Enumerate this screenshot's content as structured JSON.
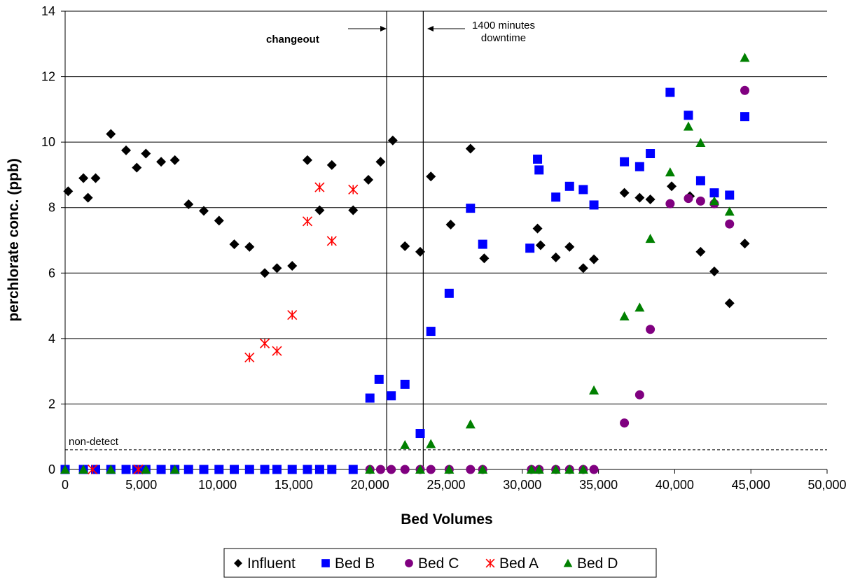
{
  "chart_data": {
    "type": "scatter",
    "title": "",
    "xlabel": "Bed Volumes",
    "ylabel": "perchlorate conc. (ppb)",
    "xlim": [
      0,
      50000
    ],
    "ylim": [
      0,
      14
    ],
    "xticks": [
      0,
      5000,
      10000,
      15000,
      20000,
      25000,
      30000,
      35000,
      40000,
      45000,
      50000
    ],
    "xtick_labels": [
      "0",
      "5,000",
      "10,000",
      "15,000",
      "20,000",
      "25,000",
      "30,000",
      "35,000",
      "40,000",
      "45,000",
      "50,000"
    ],
    "yticks": [
      0,
      2,
      4,
      6,
      8,
      10,
      12,
      14
    ],
    "ytick_labels": [
      "0",
      "2",
      "4",
      "6",
      "8",
      "10",
      "12",
      "14"
    ],
    "grid": "horizontal",
    "legend_position": "bottom",
    "reference_lines": [
      {
        "orientation": "horizontal",
        "value": 0.6,
        "style": "dashed",
        "label": "non-detect"
      },
      {
        "orientation": "vertical",
        "value": 21100,
        "style": "solid",
        "label": "changeout"
      },
      {
        "orientation": "vertical",
        "value": 23500,
        "style": "solid",
        "label": "1400 minutes downtime"
      }
    ],
    "annotations": {
      "nondetect": "non-detect",
      "changeout": "changeout",
      "downtime_line1": "1400 minutes",
      "downtime_line2": "downtime"
    },
    "series": [
      {
        "name": "Influent",
        "marker": "diamond",
        "color": "#000000",
        "points": [
          [
            200,
            8.5
          ],
          [
            1200,
            8.9
          ],
          [
            1500,
            8.3
          ],
          [
            2000,
            8.9
          ],
          [
            3000,
            10.25
          ],
          [
            4000,
            9.75
          ],
          [
            4700,
            9.22
          ],
          [
            5300,
            9.65
          ],
          [
            6300,
            9.4
          ],
          [
            7200,
            9.45
          ],
          [
            8100,
            8.1
          ],
          [
            9100,
            7.9
          ],
          [
            10100,
            7.6
          ],
          [
            11100,
            6.88
          ],
          [
            12100,
            6.8
          ],
          [
            13100,
            6.0
          ],
          [
            13900,
            6.15
          ],
          [
            14900,
            6.22
          ],
          [
            15900,
            9.45
          ],
          [
            16700,
            7.92
          ],
          [
            17500,
            9.3
          ],
          [
            18900,
            7.92
          ],
          [
            19900,
            8.85
          ],
          [
            20700,
            9.4
          ],
          [
            21500,
            10.05
          ],
          [
            22300,
            6.82
          ],
          [
            24000,
            8.95
          ],
          [
            23300,
            6.65
          ],
          [
            25300,
            7.48
          ],
          [
            26600,
            9.8
          ],
          [
            27500,
            6.45
          ],
          [
            31000,
            7.36
          ],
          [
            31200,
            6.85
          ],
          [
            32200,
            6.48
          ],
          [
            33100,
            6.8
          ],
          [
            34000,
            6.15
          ],
          [
            34700,
            6.42
          ],
          [
            36700,
            8.45
          ],
          [
            37700,
            8.3
          ],
          [
            38400,
            8.25
          ],
          [
            39800,
            8.65
          ],
          [
            41000,
            8.35
          ],
          [
            41700,
            6.65
          ],
          [
            42600,
            6.05
          ],
          [
            43600,
            5.08
          ],
          [
            44600,
            6.9
          ]
        ]
      },
      {
        "name": "Bed B",
        "marker": "square",
        "color": "#0000ff",
        "points": [
          [
            0,
            0
          ],
          [
            1200,
            0
          ],
          [
            2000,
            0
          ],
          [
            3000,
            0
          ],
          [
            4000,
            0
          ],
          [
            4700,
            0
          ],
          [
            5300,
            0
          ],
          [
            6300,
            0
          ],
          [
            7200,
            0
          ],
          [
            8100,
            0
          ],
          [
            9100,
            0
          ],
          [
            10100,
            0
          ],
          [
            11100,
            0
          ],
          [
            12100,
            0
          ],
          [
            13100,
            0
          ],
          [
            13900,
            0
          ],
          [
            14900,
            0
          ],
          [
            15900,
            0
          ],
          [
            16700,
            0
          ],
          [
            17500,
            0
          ],
          [
            18900,
            0
          ],
          [
            20000,
            2.18
          ],
          [
            20600,
            2.75
          ],
          [
            21400,
            2.25
          ],
          [
            22300,
            2.6
          ],
          [
            23300,
            1.1
          ],
          [
            24000,
            4.22
          ],
          [
            25200,
            5.38
          ],
          [
            26600,
            7.98
          ],
          [
            27400,
            6.88
          ],
          [
            30500,
            6.76
          ],
          [
            31000,
            9.48
          ],
          [
            31100,
            9.15
          ],
          [
            32200,
            8.32
          ],
          [
            33100,
            8.65
          ],
          [
            34000,
            8.55
          ],
          [
            34700,
            8.08
          ],
          [
            36700,
            9.4
          ],
          [
            37700,
            9.25
          ],
          [
            38400,
            9.65
          ],
          [
            39700,
            11.52
          ],
          [
            40900,
            10.82
          ],
          [
            41700,
            8.82
          ],
          [
            42600,
            8.45
          ],
          [
            43600,
            8.38
          ],
          [
            44600,
            10.78
          ]
        ]
      },
      {
        "name": "Bed C",
        "marker": "circle",
        "color": "#800080",
        "points": [
          [
            20000,
            0
          ],
          [
            20700,
            0
          ],
          [
            21400,
            0
          ],
          [
            22300,
            0
          ],
          [
            23300,
            0
          ],
          [
            24000,
            0
          ],
          [
            25200,
            0
          ],
          [
            26600,
            0
          ],
          [
            27400,
            0
          ],
          [
            30600,
            0
          ],
          [
            31100,
            0
          ],
          [
            32200,
            0
          ],
          [
            33100,
            0
          ],
          [
            34000,
            0
          ],
          [
            34700,
            0
          ],
          [
            36700,
            1.42
          ],
          [
            37700,
            2.28
          ],
          [
            38400,
            4.28
          ],
          [
            39700,
            8.12
          ],
          [
            40900,
            8.28
          ],
          [
            41700,
            8.2
          ],
          [
            42600,
            8.12
          ],
          [
            43600,
            7.5
          ],
          [
            44600,
            11.58
          ]
        ]
      },
      {
        "name": "Bed A",
        "marker": "asterisk",
        "color": "#ff0000",
        "points": [
          [
            1800,
            0
          ],
          [
            4800,
            0
          ],
          [
            12100,
            3.42
          ],
          [
            13100,
            3.85
          ],
          [
            13900,
            3.62
          ],
          [
            14900,
            4.72
          ],
          [
            15900,
            7.58
          ],
          [
            16700,
            8.62
          ],
          [
            17500,
            6.98
          ],
          [
            18900,
            8.55
          ]
        ]
      },
      {
        "name": "Bed D",
        "marker": "triangle",
        "color": "#008000",
        "points": [
          [
            0,
            0
          ],
          [
            1200,
            0
          ],
          [
            3000,
            0
          ],
          [
            5300,
            0
          ],
          [
            7200,
            0
          ],
          [
            20000,
            0
          ],
          [
            22300,
            0.75
          ],
          [
            23300,
            0
          ],
          [
            24000,
            0.78
          ],
          [
            25200,
            0
          ],
          [
            26600,
            1.38
          ],
          [
            27400,
            0
          ],
          [
            30600,
            0
          ],
          [
            31100,
            0
          ],
          [
            32200,
            0
          ],
          [
            33100,
            0
          ],
          [
            34000,
            0
          ],
          [
            34700,
            2.42
          ],
          [
            36700,
            4.68
          ],
          [
            37700,
            4.95
          ],
          [
            38400,
            7.05
          ],
          [
            39700,
            9.08
          ],
          [
            40900,
            10.48
          ],
          [
            41700,
            9.98
          ],
          [
            42600,
            8.2
          ],
          [
            43600,
            7.88
          ],
          [
            44600,
            12.58
          ]
        ]
      }
    ]
  }
}
